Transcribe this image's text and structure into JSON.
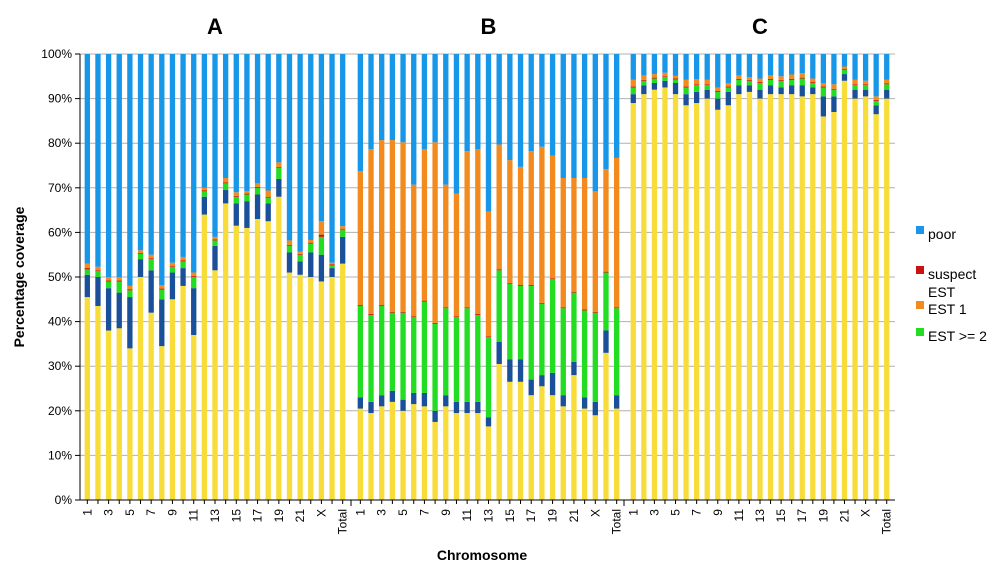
{
  "chart_data": {
    "type": "bar",
    "stacked": true,
    "ylabel": "Percentage coverage",
    "xlabel": "Chromosome",
    "ylim": [
      0,
      100
    ],
    "yticks": [
      "0%",
      "10%",
      "20%",
      "30%",
      "40%",
      "50%",
      "60%",
      "70%",
      "80%",
      "90%",
      "100%"
    ],
    "legend_position": "right",
    "colors": {
      "EST >= 2": "#22dd22",
      "EST 1": "#f28a1e",
      "suspect": "#cc1111",
      "poor": "#1896e8",
      "base": "#f8dd3a",
      "dark": "#1a4f99"
    },
    "legend": [
      {
        "key": "poor",
        "label": "poor"
      },
      {
        "key": "suspect",
        "label": "suspect"
      },
      {
        "key": "EST 1",
        "label": "EST\nEST 1"
      },
      {
        "key": "EST >= 2",
        "label": "EST >= 2"
      }
    ],
    "panels": [
      {
        "title": "A",
        "categories": [
          "1",
          "2",
          "3",
          "4",
          "5",
          "6",
          "7",
          "8",
          "9",
          "10",
          "11",
          "12",
          "13",
          "14",
          "15",
          "16",
          "17",
          "18",
          "19",
          "20",
          "21",
          "22",
          "X",
          "Y",
          "Total"
        ],
        "tick_labels": [
          "1",
          "3",
          "5",
          "7",
          "9",
          "11",
          "13",
          "15",
          "17",
          "19",
          "21",
          "X",
          "Total"
        ],
        "bars": [
          [
            45.5,
            5.0,
            1.2,
            0.3,
            1.0
          ],
          [
            43.5,
            6.5,
            1.3,
            0.2,
            0.8
          ],
          [
            38.0,
            9.5,
            1.5,
            0.2,
            0.8
          ],
          [
            38.5,
            8.0,
            2.5,
            0.2,
            0.8
          ],
          [
            34.0,
            11.5,
            1.5,
            0.2,
            0.8
          ],
          [
            50.0,
            4.0,
            1.2,
            0.2,
            0.6
          ],
          [
            42.0,
            9.5,
            2.5,
            0.2,
            0.8
          ],
          [
            34.5,
            10.5,
            2.2,
            0.2,
            0.8
          ],
          [
            45.0,
            6.0,
            1.2,
            0.2,
            0.8
          ],
          [
            48.0,
            4.0,
            1.5,
            0.2,
            0.8
          ],
          [
            37.0,
            10.5,
            2.5,
            0.2,
            0.8
          ],
          [
            64.0,
            4.0,
            1.2,
            0.2,
            0.6
          ],
          [
            51.5,
            5.5,
            1.2,
            0.2,
            0.6
          ],
          [
            66.5,
            3.0,
            1.5,
            0.2,
            1.0
          ],
          [
            61.5,
            5.0,
            1.5,
            0.2,
            0.8
          ],
          [
            61.0,
            6.0,
            1.5,
            0.2,
            0.6
          ],
          [
            63.0,
            5.5,
            1.5,
            0.2,
            0.8
          ],
          [
            62.5,
            4.0,
            1.2,
            0.2,
            1.5
          ],
          [
            68.0,
            4.0,
            2.5,
            0.2,
            1.0
          ],
          [
            51.0,
            4.5,
            1.5,
            0.2,
            1.0
          ],
          [
            50.5,
            3.0,
            1.5,
            0.2,
            0.5
          ],
          [
            50.0,
            5.5,
            2.0,
            0.2,
            0.6
          ],
          [
            49.0,
            6.0,
            4.0,
            0.5,
            3.0
          ],
          [
            50.0,
            2.0,
            0.6,
            0.2,
            0.4
          ],
          [
            53.0,
            6.0,
            1.5,
            0.2,
            0.7
          ]
        ]
      },
      {
        "title": "B",
        "categories": [
          "1",
          "2",
          "3",
          "4",
          "5",
          "6",
          "7",
          "8",
          "9",
          "10",
          "11",
          "12",
          "13",
          "14",
          "15",
          "16",
          "17",
          "18",
          "19",
          "20",
          "21",
          "22",
          "X",
          "Y",
          "Total"
        ],
        "tick_labels": [
          "1",
          "3",
          "5",
          "7",
          "9",
          "11",
          "13",
          "15",
          "17",
          "19",
          "21",
          "X",
          "Total"
        ],
        "bars": [
          [
            20.5,
            2.5,
            20.5,
            0.2,
            30.0
          ],
          [
            19.5,
            2.5,
            19.5,
            0.2,
            37.0
          ],
          [
            21.0,
            2.5,
            20.0,
            0.2,
            37.0
          ],
          [
            22.0,
            2.5,
            17.5,
            0.2,
            38.5
          ],
          [
            20.0,
            2.5,
            19.5,
            0.2,
            38.0
          ],
          [
            21.5,
            2.5,
            17.0,
            0.2,
            29.5
          ],
          [
            21.0,
            3.0,
            20.5,
            0.2,
            34.0
          ],
          [
            17.5,
            2.5,
            19.5,
            0.2,
            40.5
          ],
          [
            21.0,
            2.5,
            19.5,
            0.2,
            27.5
          ],
          [
            19.5,
            2.5,
            19.0,
            0.2,
            27.5
          ],
          [
            19.5,
            2.5,
            21.0,
            0.2,
            35.0
          ],
          [
            19.5,
            2.5,
            19.5,
            0.2,
            37.0
          ],
          [
            16.5,
            2.0,
            18.0,
            0.2,
            28.0
          ],
          [
            30.5,
            5.0,
            16.0,
            0.2,
            28.0
          ],
          [
            26.5,
            5.0,
            17.0,
            0.2,
            27.5
          ],
          [
            26.5,
            5.0,
            16.5,
            0.2,
            26.5
          ],
          [
            23.5,
            3.5,
            21.0,
            0.2,
            30.0
          ],
          [
            25.5,
            2.5,
            16.0,
            0.2,
            35.0
          ],
          [
            23.5,
            5.0,
            21.0,
            0.2,
            27.5
          ],
          [
            21.0,
            2.5,
            19.5,
            0.2,
            29.0
          ],
          [
            28.0,
            3.0,
            15.5,
            0.2,
            25.5
          ],
          [
            20.5,
            2.5,
            19.5,
            0.2,
            29.5
          ],
          [
            19.0,
            3.0,
            20.0,
            0.2,
            27.0
          ],
          [
            33.0,
            5.0,
            13.0,
            0.2,
            23.0
          ],
          [
            20.5,
            3.0,
            19.5,
            0.2,
            33.5
          ]
        ]
      },
      {
        "title": "C",
        "categories": [
          "1",
          "2",
          "3",
          "4",
          "5",
          "6",
          "7",
          "8",
          "9",
          "10",
          "11",
          "12",
          "13",
          "14",
          "15",
          "16",
          "17",
          "18",
          "19",
          "20",
          "21",
          "22",
          "X",
          "Y",
          "Total"
        ],
        "tick_labels": [
          "1",
          "3",
          "5",
          "7",
          "9",
          "11",
          "13",
          "15",
          "17",
          "19",
          "21",
          "X",
          "Total"
        ],
        "bars": [
          [
            89.0,
            2.0,
            1.5,
            0.2,
            1.5
          ],
          [
            91.0,
            2.0,
            1.0,
            0.2,
            1.0
          ],
          [
            92.0,
            1.5,
            1.0,
            0.2,
            0.8
          ],
          [
            92.5,
            1.5,
            0.8,
            0.2,
            0.8
          ],
          [
            91.0,
            2.5,
            0.8,
            0.2,
            0.6
          ],
          [
            88.5,
            2.5,
            1.5,
            0.2,
            1.5
          ],
          [
            89.0,
            2.5,
            1.5,
            0.2,
            1.2
          ],
          [
            90.0,
            2.0,
            1.0,
            0.2,
            1.0
          ],
          [
            87.5,
            2.5,
            1.5,
            0.2,
            0.8
          ],
          [
            88.5,
            3.0,
            1.0,
            0.2,
            0.8
          ],
          [
            91.0,
            2.0,
            1.2,
            0.2,
            0.8
          ],
          [
            91.5,
            1.5,
            1.0,
            0.2,
            0.6
          ],
          [
            90.0,
            2.0,
            1.5,
            0.2,
            0.8
          ],
          [
            91.0,
            2.0,
            1.2,
            0.2,
            0.8
          ],
          [
            91.0,
            1.5,
            1.5,
            0.2,
            0.8
          ],
          [
            91.0,
            2.0,
            1.2,
            0.2,
            1.0
          ],
          [
            90.5,
            2.5,
            1.5,
            0.2,
            1.0
          ],
          [
            91.0,
            1.5,
            1.0,
            0.2,
            0.8
          ],
          [
            86.0,
            4.5,
            2.0,
            0.2,
            0.8
          ],
          [
            87.0,
            3.5,
            1.5,
            0.2,
            1.0
          ],
          [
            94.0,
            1.5,
            1.0,
            0.2,
            0.5
          ],
          [
            90.0,
            2.0,
            1.0,
            0.2,
            1.0
          ],
          [
            90.5,
            1.5,
            1.0,
            0.2,
            0.8
          ],
          [
            86.5,
            2.0,
            1.0,
            0.2,
            0.8
          ],
          [
            90.0,
            2.0,
            1.2,
            0.2,
            0.8
          ]
        ]
      }
    ]
  }
}
